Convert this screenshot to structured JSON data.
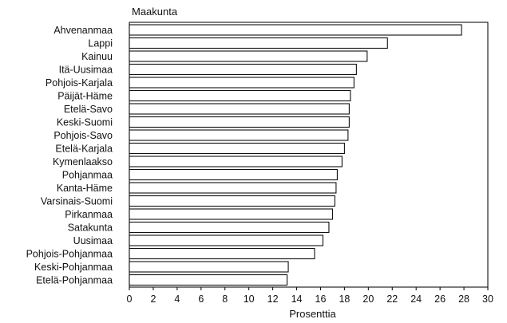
{
  "chart_data": {
    "type": "bar",
    "orientation": "horizontal",
    "title": "Maakunta",
    "xlabel": "Prosenttia",
    "ylabel": "",
    "xlim": [
      0,
      30
    ],
    "xticks": [
      0,
      2,
      4,
      6,
      8,
      10,
      12,
      14,
      16,
      18,
      20,
      22,
      24,
      26,
      28,
      30
    ],
    "grid": false,
    "categories": [
      "Ahvenanmaa",
      "Lappi",
      "Kainuu",
      "Itä-Uusimaa",
      "Pohjois-Karjala",
      "Päijät-Häme",
      "Etelä-Savo",
      "Keski-Suomi",
      "Pohjois-Savo",
      "Etelä-Karjala",
      "Kymenlaakso",
      "Pohjanmaa",
      "Kanta-Häme",
      "Varsinais-Suomi",
      "Pirkanmaa",
      "Satakunta",
      "Uusimaa",
      "Pohjois-Pohjanmaa",
      "Keski-Pohjanmaa",
      "Etelä-Pohjanmaa"
    ],
    "values": [
      27.8,
      21.6,
      19.9,
      19.0,
      18.8,
      18.5,
      18.4,
      18.4,
      18.3,
      18.0,
      17.8,
      17.4,
      17.3,
      17.2,
      17.0,
      16.7,
      16.2,
      15.5,
      13.3,
      13.2
    ]
  }
}
